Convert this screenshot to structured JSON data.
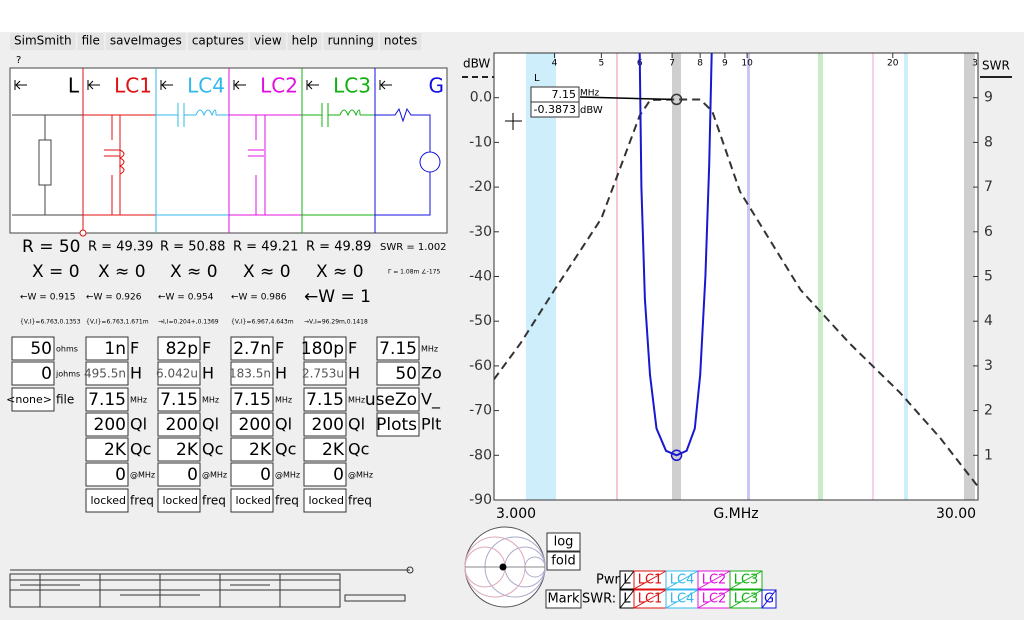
{
  "menu": [
    "SimSmith",
    "file",
    "saveImages",
    "captures",
    "view",
    "help",
    "running",
    "notes"
  ],
  "help": "?",
  "elements": [
    {
      "label": "L",
      "color": "#000000"
    },
    {
      "label": "LC1",
      "color": "#e01010"
    },
    {
      "label": "LC4",
      "color": "#30b8ee"
    },
    {
      "label": "LC2",
      "color": "#e010e0"
    },
    {
      "label": "LC3",
      "color": "#10b010"
    },
    {
      "label": "G",
      "color": "#1010e0"
    }
  ],
  "r_row": [
    "R = 50",
    "R = 49.39",
    "R = 50.88",
    "R = 49.21",
    "R = 49.89",
    "SWR = 1.002"
  ],
  "x_row": [
    "X = 0",
    "X ≈ 0",
    "X ≈ 0",
    "X ≈ 0",
    "X ≈ 0",
    "Γ = 1.08m ∠-175"
  ],
  "w_row": [
    "←W = 0.915",
    "←W = 0.926",
    "←W = 0.954",
    "←W = 0.986",
    "←W = 1"
  ],
  "vi_row": [
    "{V,I}=6.763,0.1353",
    "{V,I}=6.763,1.671m",
    "→I,I=0.204+,0.1369",
    "{V,I}=6.967,4.643m",
    "→V,I=96.29m,0.1418"
  ],
  "params": [
    [
      [
        "50",
        "ohms"
      ],
      [
        "0",
        "johms"
      ],
      [
        "<none>",
        "file"
      ]
    ],
    [
      [
        "1n",
        "F"
      ],
      [
        "495.5n",
        "H"
      ],
      [
        "7.15",
        "MHz"
      ],
      [
        "200",
        "Ql"
      ],
      [
        "2K",
        "Qc"
      ],
      [
        "0",
        "@MHz"
      ],
      [
        "locked",
        "freq"
      ]
    ],
    [
      [
        "82p",
        "F"
      ],
      [
        "6.042u",
        "H"
      ],
      [
        "7.15",
        "MHz"
      ],
      [
        "200",
        "Ql"
      ],
      [
        "2K",
        "Qc"
      ],
      [
        "0",
        "@MHz"
      ],
      [
        "locked",
        "freq"
      ]
    ],
    [
      [
        "2.7n",
        "F"
      ],
      [
        "183.5n",
        "H"
      ],
      [
        "7.15",
        "MHz"
      ],
      [
        "200",
        "Ql"
      ],
      [
        "2K",
        "Qc"
      ],
      [
        "0",
        "@MHz"
      ],
      [
        "locked",
        "freq"
      ]
    ],
    [
      [
        "180p",
        "F"
      ],
      [
        "2.753u",
        "H"
      ],
      [
        "7.15",
        "MHz"
      ],
      [
        "200",
        "Ql"
      ],
      [
        "2K",
        "Qc"
      ],
      [
        "0",
        "@MHz"
      ],
      [
        "locked",
        "freq"
      ]
    ],
    [
      [
        "7.15",
        "MHz"
      ],
      [
        "50",
        "Zo"
      ],
      [
        "useZo",
        "V_"
      ],
      [
        "Plots",
        "Plt"
      ]
    ]
  ],
  "plot": {
    "y_label": "dBW",
    "y2_label": "SWR",
    "x_label": "G.MHz",
    "xlim": [
      3,
      30
    ],
    "xlog": true,
    "ylim": [
      -90,
      10
    ],
    "y2lim": [
      0,
      10
    ],
    "yticks": [
      {
        "value": 0,
        "label": "0.0"
      },
      -10,
      -20,
      -30,
      -40,
      -50,
      -60,
      -70,
      -80,
      -90
    ],
    "y2ticks": [
      1,
      2,
      3,
      4,
      5,
      6,
      7,
      8,
      9
    ],
    "xticks": [
      {
        "value": 3,
        "label": "3.000"
      },
      {
        "value": 30,
        "label": "30.00"
      }
    ],
    "top_ticks": [
      4,
      5,
      6,
      7,
      8,
      9,
      10,
      20,
      {
        "value": 30,
        "label": "3"
      }
    ],
    "series": [
      {
        "color": "#333333",
        "dash": true,
        "axis": "y",
        "x": [
          3.0,
          3.4,
          4.0,
          5.0,
          6.0,
          6.31,
          7.0,
          8.0,
          8.47,
          9.67,
          12.9,
          16.3,
          20.7,
          25,
          30
        ],
        "values": [
          -63,
          -55,
          -43,
          -27,
          -4,
          -0.5,
          -0.4,
          -0.4,
          -3,
          -21,
          -43,
          -55,
          -66,
          -76,
          -87
        ]
      },
      {
        "color": "#1818d0",
        "dash": false,
        "axis": "y2",
        "x": [
          6.0,
          6.05,
          6.15,
          6.3,
          6.5,
          6.8,
          7.15,
          7.5,
          7.8,
          8.0,
          8.2,
          8.35,
          8.45
        ],
        "values": [
          10,
          7,
          4.5,
          2.8,
          1.6,
          1.1,
          1.0,
          1.1,
          1.6,
          2.8,
          5,
          7.5,
          10
        ]
      }
    ],
    "marker": {
      "element": "L",
      "x": 7.15,
      "x_unit": "MHz",
      "y": -0.3873,
      "y_unit": "dBW",
      "y2": 1.0
    }
  },
  "buttons": {
    "log": "log",
    "fold": "fold",
    "mark": "Mark",
    "pwr": "Pwr:",
    "swr": "SWR:"
  },
  "pwr_toggles": [
    {
      "label": "L",
      "color": "#000000"
    },
    {
      "label": "LC1",
      "color": "#e01010"
    },
    {
      "label": "LC4",
      "color": "#30b8ee"
    },
    {
      "label": "LC2",
      "color": "#e010e0"
    },
    {
      "label": "LC3",
      "color": "#10b010"
    }
  ],
  "swr_toggles": [
    {
      "label": "L",
      "color": "#000000"
    },
    {
      "label": "LC1",
      "color": "#e01010"
    },
    {
      "label": "LC4",
      "color": "#30b8ee"
    },
    {
      "label": "LC2",
      "color": "#e010e0"
    },
    {
      "label": "LC3",
      "color": "#10b010"
    },
    {
      "label": "G",
      "color": "#1010e0"
    }
  ]
}
